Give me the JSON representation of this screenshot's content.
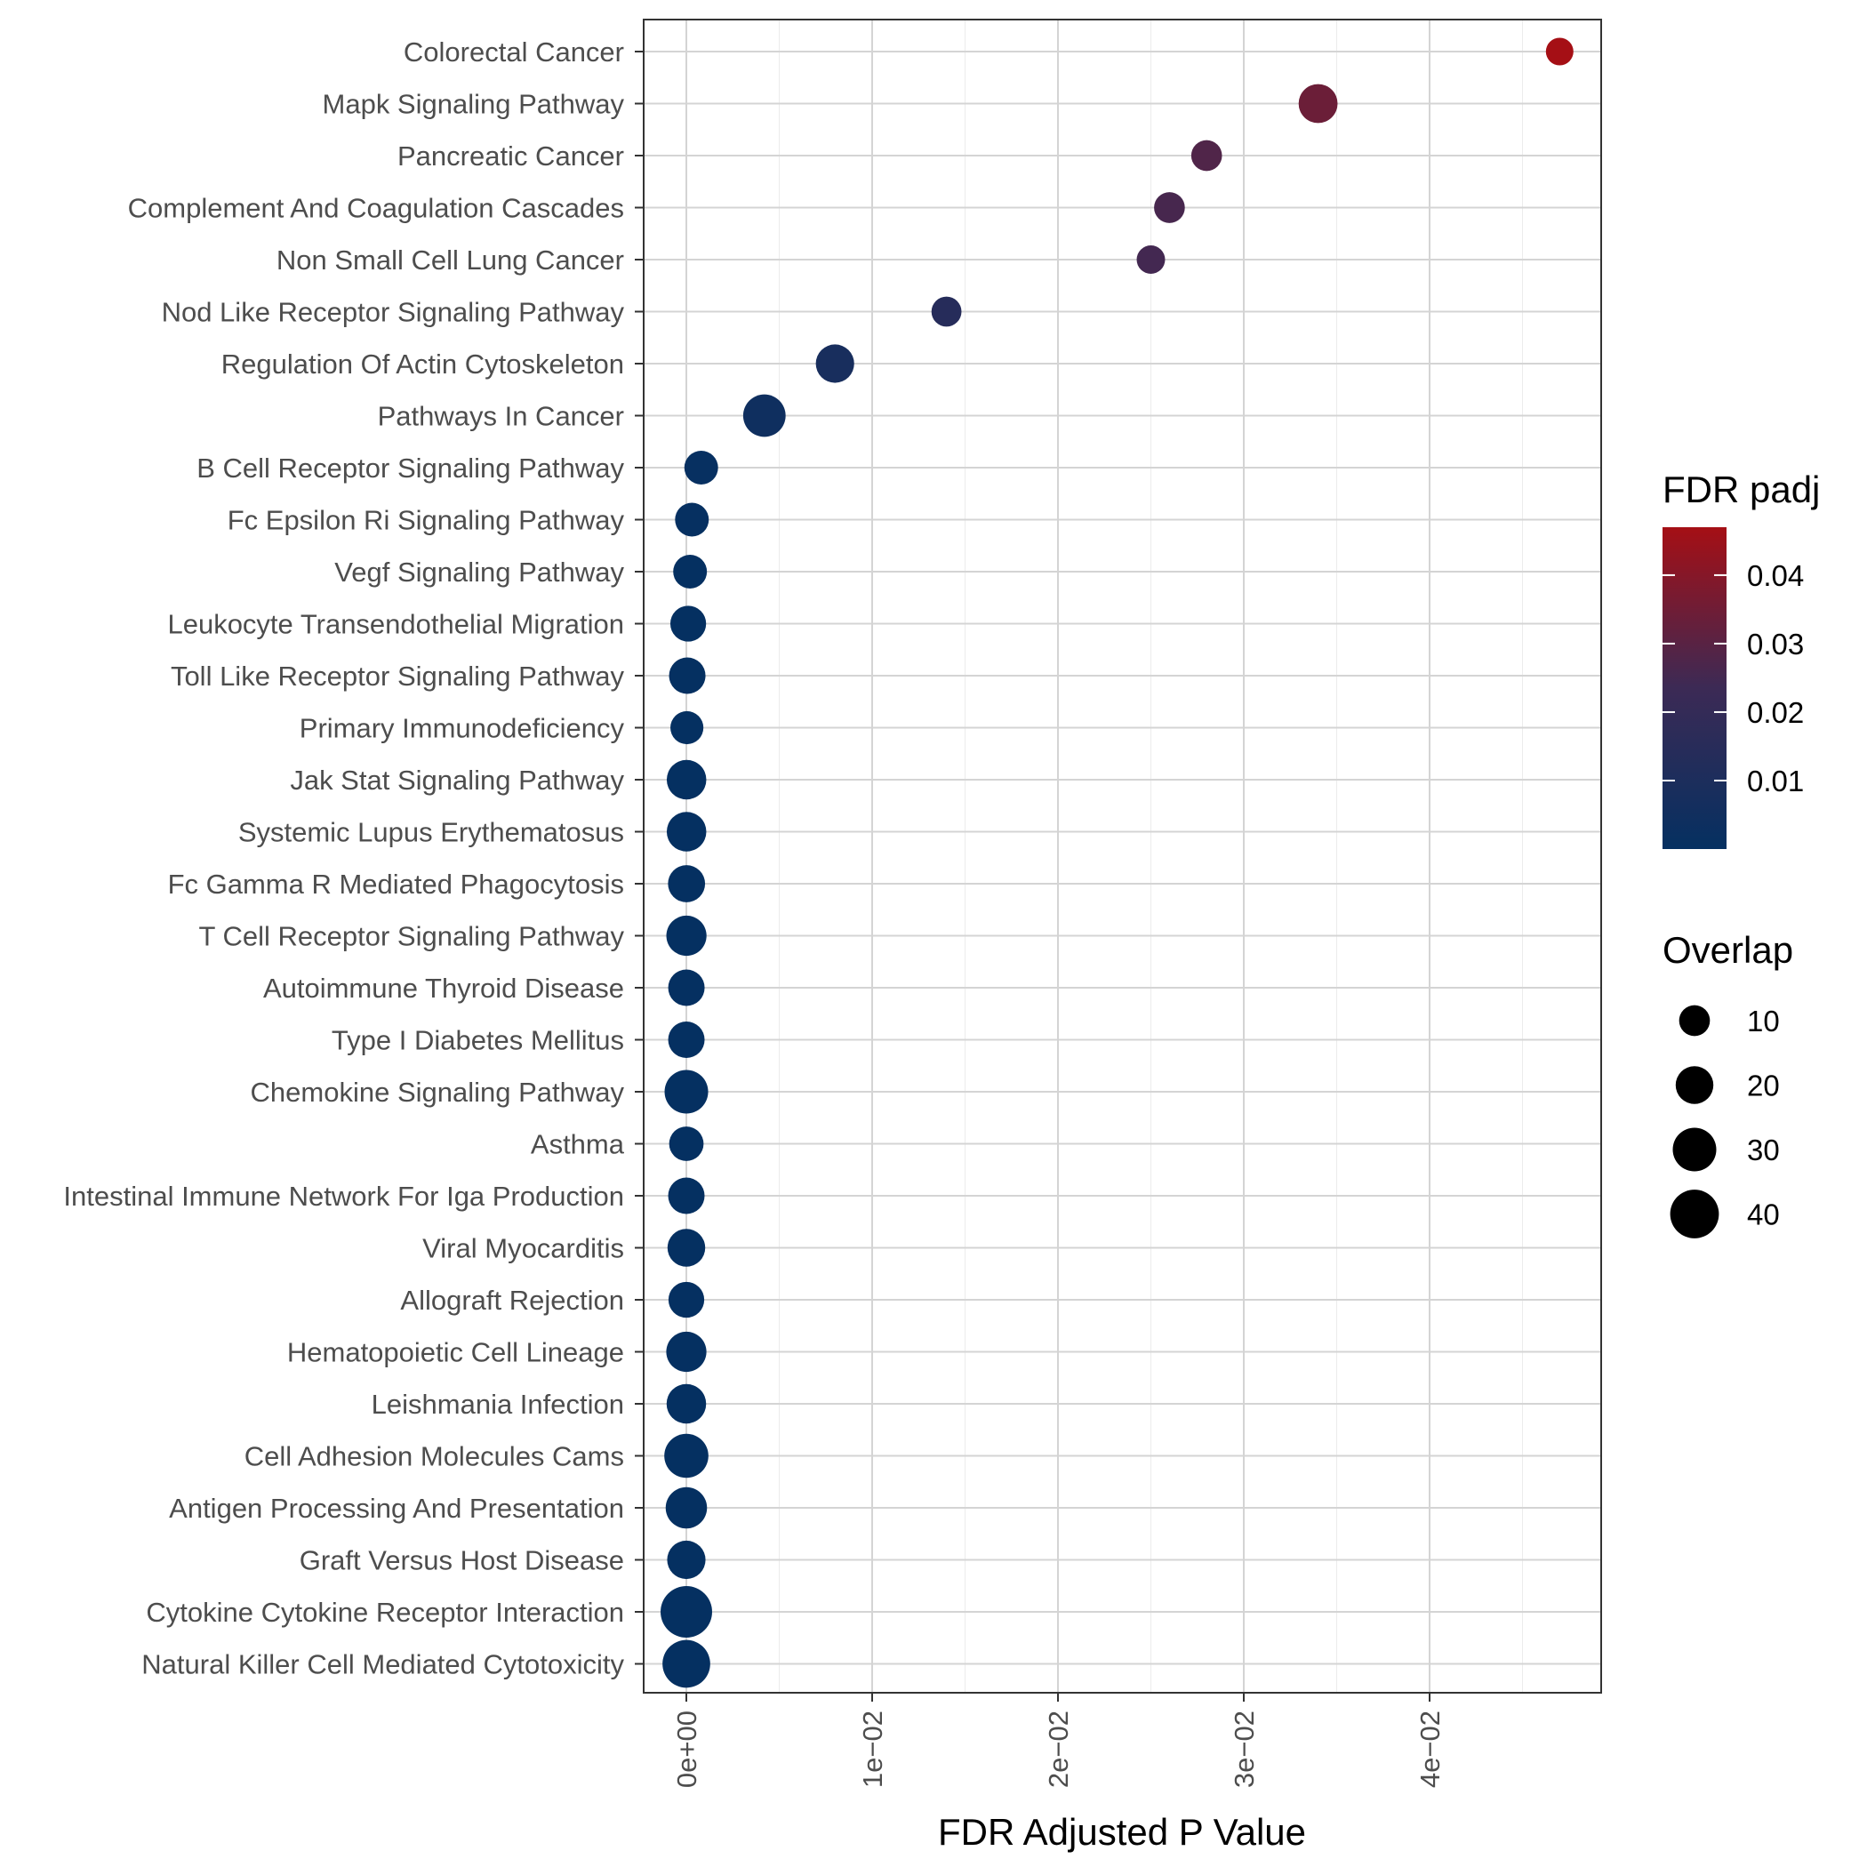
{
  "chart_data": {
    "type": "scatter",
    "xlabel": "FDR Adjusted P Value",
    "ylabel": "",
    "xlim": [
      -0.0022,
      0.049
    ],
    "x_ticks": [
      {
        "value": 0,
        "label": "0e+00"
      },
      {
        "value": 0.01,
        "label": "1e−02"
      },
      {
        "value": 0.02,
        "label": "2e−02"
      },
      {
        "value": 0.03,
        "label": "3e−02"
      },
      {
        "value": 0.04,
        "label": "4e−02"
      }
    ],
    "grid": true,
    "color_legend": {
      "title": "FDR padj",
      "low_color": "#053061",
      "mid_color": "#3c2a55",
      "high_color": "#a50f15",
      "range": [
        0.0,
        0.047
      ],
      "ticks": [
        {
          "value": 0.04,
          "label": "0.04"
        },
        {
          "value": 0.03,
          "label": "0.03"
        },
        {
          "value": 0.02,
          "label": "0.02"
        },
        {
          "value": 0.01,
          "label": "0.01"
        }
      ]
    },
    "size_legend": {
      "title": "Overlap",
      "range": [
        5,
        50
      ],
      "entries": [
        {
          "value": 10,
          "label": "10"
        },
        {
          "value": 20,
          "label": "20"
        },
        {
          "value": 30,
          "label": "30"
        },
        {
          "value": 40,
          "label": "40"
        }
      ]
    },
    "points": [
      {
        "label": "Colorectal Cancer",
        "x": 0.047,
        "overlap": 6
      },
      {
        "label": "Mapk Signaling Pathway",
        "x": 0.034,
        "overlap": 22
      },
      {
        "label": "Pancreatic Cancer",
        "x": 0.028,
        "overlap": 10
      },
      {
        "label": "Complement And Coagulation Cascades",
        "x": 0.026,
        "overlap": 10
      },
      {
        "label": "Non Small Cell Lung Cancer",
        "x": 0.025,
        "overlap": 7
      },
      {
        "label": "Nod Like Receptor Signaling Pathway",
        "x": 0.014,
        "overlap": 9
      },
      {
        "label": "Regulation Of Actin Cytoskeleton",
        "x": 0.008,
        "overlap": 21
      },
      {
        "label": "Pathways In Cancer",
        "x": 0.0042,
        "overlap": 28
      },
      {
        "label": "B Cell Receptor Signaling Pathway",
        "x": 0.0008,
        "overlap": 14
      },
      {
        "label": "Fc Epsilon Ri Signaling Pathway",
        "x": 0.0003,
        "overlap": 14
      },
      {
        "label": "Vegf Signaling Pathway",
        "x": 0.0002,
        "overlap": 14
      },
      {
        "label": "Leukocyte Transendothelial Migration",
        "x": 0.0001,
        "overlap": 17
      },
      {
        "label": "Toll Like Receptor Signaling Pathway",
        "x": 5e-05,
        "overlap": 18
      },
      {
        "label": "Primary Immunodeficiency",
        "x": 3e-05,
        "overlap": 13
      },
      {
        "label": "Jak Stat Signaling Pathway",
        "x": 1e-05,
        "overlap": 23
      },
      {
        "label": "Systemic Lupus Erythematosus",
        "x": 1e-05,
        "overlap": 23
      },
      {
        "label": "Fc Gamma R Mediated Phagocytosis",
        "x": 1e-05,
        "overlap": 19
      },
      {
        "label": "T Cell Receptor Signaling Pathway",
        "x": 5e-06,
        "overlap": 24
      },
      {
        "label": "Autoimmune Thyroid Disease",
        "x": 3e-06,
        "overlap": 18
      },
      {
        "label": "Type I Diabetes Mellitus",
        "x": 2e-06,
        "overlap": 18
      },
      {
        "label": "Chemokine Signaling Pathway",
        "x": 1e-06,
        "overlap": 30
      },
      {
        "label": "Asthma",
        "x": 1e-06,
        "overlap": 15
      },
      {
        "label": "Intestinal Immune Network For Iga Production",
        "x": 1e-06,
        "overlap": 18
      },
      {
        "label": "Viral Myocarditis",
        "x": 5e-07,
        "overlap": 20
      },
      {
        "label": "Allograft Rejection",
        "x": 3e-07,
        "overlap": 17
      },
      {
        "label": "Hematopoietic Cell Lineage",
        "x": 2e-07,
        "overlap": 24
      },
      {
        "label": "Leishmania Infection",
        "x": 1e-07,
        "overlap": 23
      },
      {
        "label": "Cell Adhesion Molecules Cams",
        "x": 5e-08,
        "overlap": 31
      },
      {
        "label": "Antigen Processing And Presentation",
        "x": 2e-08,
        "overlap": 26
      },
      {
        "label": "Graft Versus Host Disease",
        "x": 1e-08,
        "overlap": 21
      },
      {
        "label": "Cytokine Cytokine Receptor Interaction",
        "x": 1e-09,
        "overlap": 46
      },
      {
        "label": "Natural Killer Cell Mediated Cytotoxicity",
        "x": 5e-10,
        "overlap": 38
      }
    ]
  }
}
